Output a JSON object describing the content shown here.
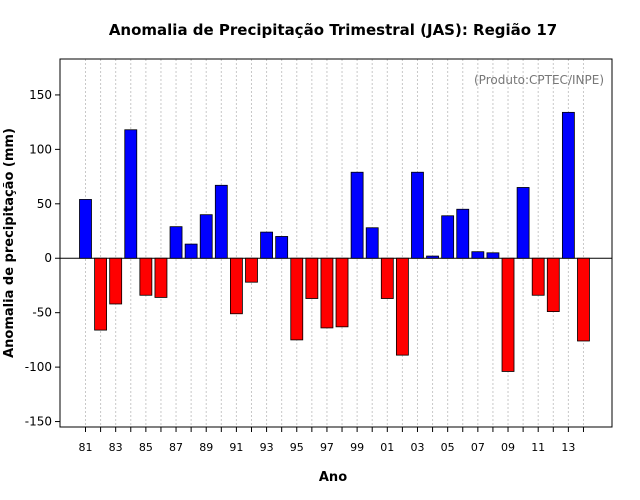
{
  "chart_data": {
    "type": "bar",
    "title": "Anomalia de Precipitação Trimestral (JAS): Região 17",
    "xlabel": "Ano",
    "ylabel": "Anomalia de precipitação (mm)",
    "credit": "(Produto:CPTEC/INPE)",
    "ylim": [
      -155,
      183
    ],
    "yticks": [
      -150,
      -100,
      -50,
      0,
      50,
      100,
      150
    ],
    "ytick_labels": [
      "-150",
      "-100",
      "-50",
      "0",
      "50",
      "100",
      "150"
    ],
    "xtick_labels": [
      "81",
      "83",
      "85",
      "87",
      "89",
      "91",
      "93",
      "95",
      "97",
      "99",
      "01",
      "03",
      "05",
      "07",
      "09",
      "11",
      "13"
    ],
    "grid": true,
    "positive_color": "#0000ff",
    "negative_color": "#ff0000",
    "categories": [
      "81",
      "82",
      "83",
      "84",
      "85",
      "86",
      "87",
      "88",
      "89",
      "90",
      "91",
      "92",
      "93",
      "94",
      "95",
      "96",
      "97",
      "98",
      "99",
      "00",
      "01",
      "02",
      "03",
      "04",
      "05",
      "06",
      "07",
      "08",
      "09",
      "10",
      "11",
      "12",
      "13",
      "14"
    ],
    "values": [
      54,
      -66,
      -42,
      118,
      -34,
      -36,
      29,
      13,
      40,
      67,
      -51,
      -22,
      24,
      20,
      -75,
      -37,
      -64,
      -63,
      79,
      28,
      -37,
      -89,
      79,
      2,
      39,
      45,
      6,
      5,
      -104,
      65,
      -34,
      -49,
      134,
      -76
    ]
  }
}
